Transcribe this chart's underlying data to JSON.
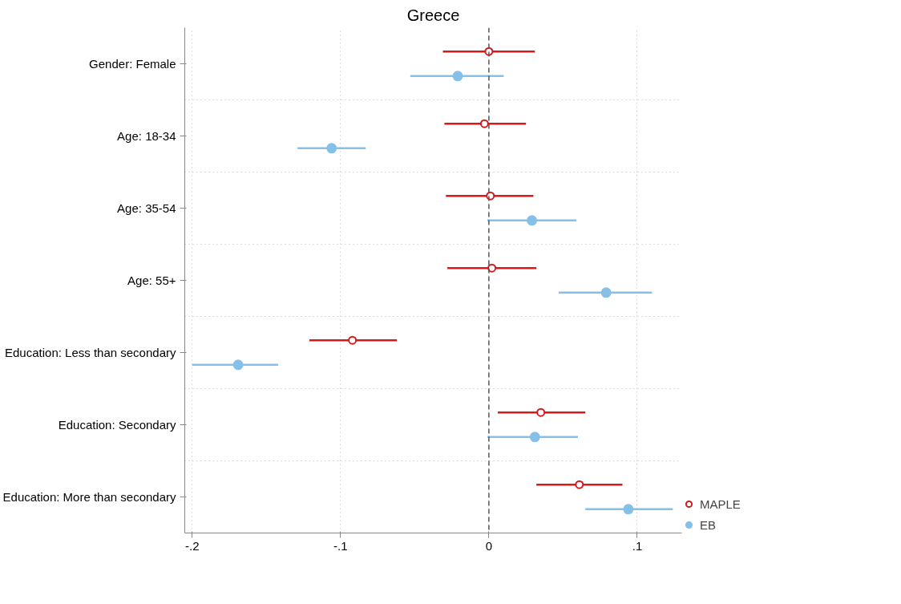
{
  "chart_data": {
    "type": "scatter",
    "title": "Greece",
    "orientation": "horizontal",
    "categories": [
      "Gender: Female",
      "Age: 18-34",
      "Age: 35-54",
      "Age: 55+",
      "Education: Less than secondary",
      "Education: Secondary",
      "Education: More than secondary"
    ],
    "series": [
      {
        "name": "MAPLE",
        "color": "#d7191c",
        "values": [
          0.0,
          -0.003,
          0.001,
          0.002,
          -0.092,
          0.035,
          0.061
        ],
        "errors": [
          [
            -0.031,
            0.031
          ],
          [
            -0.03,
            0.025
          ],
          [
            -0.029,
            0.03
          ],
          [
            -0.028,
            0.032
          ],
          [
            -0.121,
            -0.062
          ],
          [
            0.006,
            0.065
          ],
          [
            0.032,
            0.09
          ]
        ]
      },
      {
        "name": "EB",
        "color": "#85c0e9",
        "values": [
          -0.021,
          -0.106,
          0.029,
          0.079,
          -0.169,
          0.031,
          0.094
        ],
        "errors": [
          [
            -0.053,
            0.01
          ],
          [
            -0.129,
            -0.083
          ],
          [
            -0.001,
            0.059
          ],
          [
            0.047,
            0.11
          ],
          [
            -0.2,
            -0.142
          ],
          [
            -0.001,
            0.06
          ],
          [
            0.065,
            0.124
          ]
        ]
      }
    ],
    "xlim": [
      -0.205,
      0.13
    ],
    "xticks": [
      {
        "value": -0.2,
        "label": "-.2"
      },
      {
        "value": -0.1,
        "label": "-.1"
      },
      0,
      {
        "value": 0.1,
        "label": ".1"
      }
    ],
    "ref_lines": [
      {
        "axis": "x",
        "value": 0,
        "color": "#555555",
        "line_style": "dashed"
      }
    ],
    "grid": true,
    "legend": "bottom right",
    "marker": "circle"
  }
}
